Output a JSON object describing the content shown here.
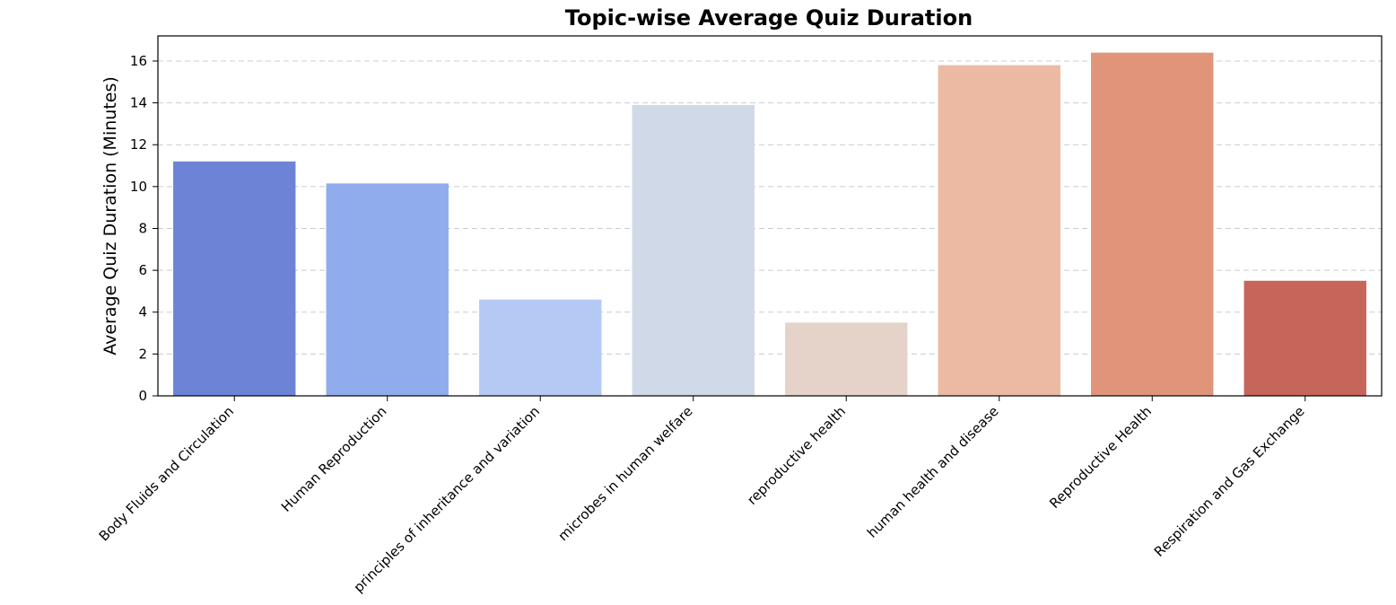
{
  "chart_data": {
    "type": "bar",
    "title": "Topic-wise Average Quiz Duration",
    "xlabel": "",
    "ylabel": "Average Quiz Duration (Minutes)",
    "ylim": [
      0,
      17.2
    ],
    "yticks": [
      0,
      2,
      4,
      6,
      8,
      10,
      12,
      14,
      16
    ],
    "grid": "y",
    "categories": [
      "Body Fluids and Circulation",
      "Human Reproduction",
      "principles of inheritance and variation",
      "microbes in human welfare",
      "reproductive health",
      "human health and disease",
      "Reproductive Health",
      "Respiration and Gas Exchange"
    ],
    "values": [
      11.2,
      10.15,
      4.6,
      13.9,
      3.5,
      15.8,
      16.4,
      5.5
    ],
    "colors": [
      "#6d84d6",
      "#90acec",
      "#b4c9f3",
      "#d0d9e8",
      "#e5d3ca",
      "#ecbaa3",
      "#e0957b",
      "#c6665a"
    ]
  }
}
